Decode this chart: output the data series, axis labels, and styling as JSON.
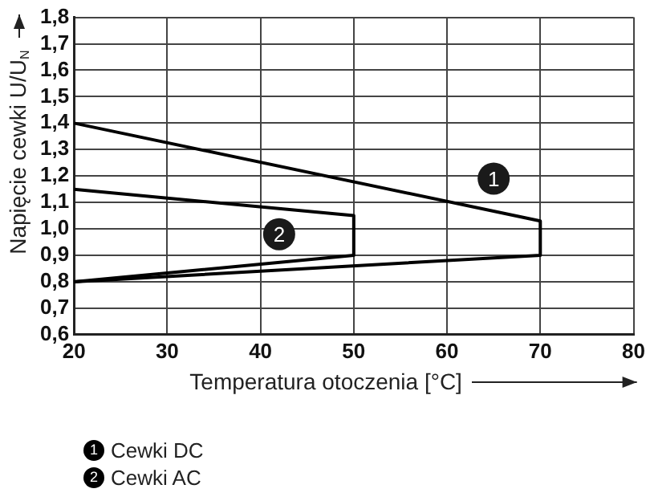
{
  "chart_data": {
    "type": "line",
    "xlabel": "Temperatura otoczenia [°C]",
    "ylabel": "Napięcie cewki U/U$_{N}$",
    "xlim": [
      20,
      80
    ],
    "xticks": [
      20,
      30,
      40,
      50,
      60,
      70,
      80
    ],
    "ylim": [
      0.6,
      1.8
    ],
    "yticks": [
      {
        "value": 0.6,
        "label": "0,6"
      },
      {
        "value": 0.7,
        "label": "0,7"
      },
      {
        "value": 0.8,
        "label": "0,8"
      },
      {
        "value": 0.9,
        "label": "0,9"
      },
      {
        "value": 1.0,
        "label": "1,0"
      },
      {
        "value": 1.1,
        "label": "1,1"
      },
      {
        "value": 1.2,
        "label": "1,2"
      },
      {
        "value": 1.3,
        "label": "1,3"
      },
      {
        "value": 1.4,
        "label": "1,4"
      },
      {
        "value": 1.5,
        "label": "1,5"
      },
      {
        "value": 1.6,
        "label": "1,6"
      },
      {
        "value": 1.7,
        "label": "1,7"
      },
      {
        "value": 1.8,
        "label": "1,8"
      }
    ],
    "series": [
      {
        "name": "Cewki DC",
        "color": "#000000",
        "x": [
          20,
          70,
          70,
          20
        ],
        "values": [
          1.4,
          1.03,
          0.9,
          0.8
        ]
      },
      {
        "name": "Cewki AC",
        "color": "#000000",
        "x": [
          20,
          50,
          50,
          20
        ],
        "values": [
          1.15,
          1.05,
          0.9,
          0.8
        ]
      }
    ],
    "annotations": [
      {
        "text": "1",
        "x": 65,
        "y": 1.19
      },
      {
        "text": "2",
        "x": 42,
        "y": 0.98
      }
    ],
    "grid": true,
    "marker": "none",
    "line_style": "solid",
    "legend": "bottom left"
  }
}
